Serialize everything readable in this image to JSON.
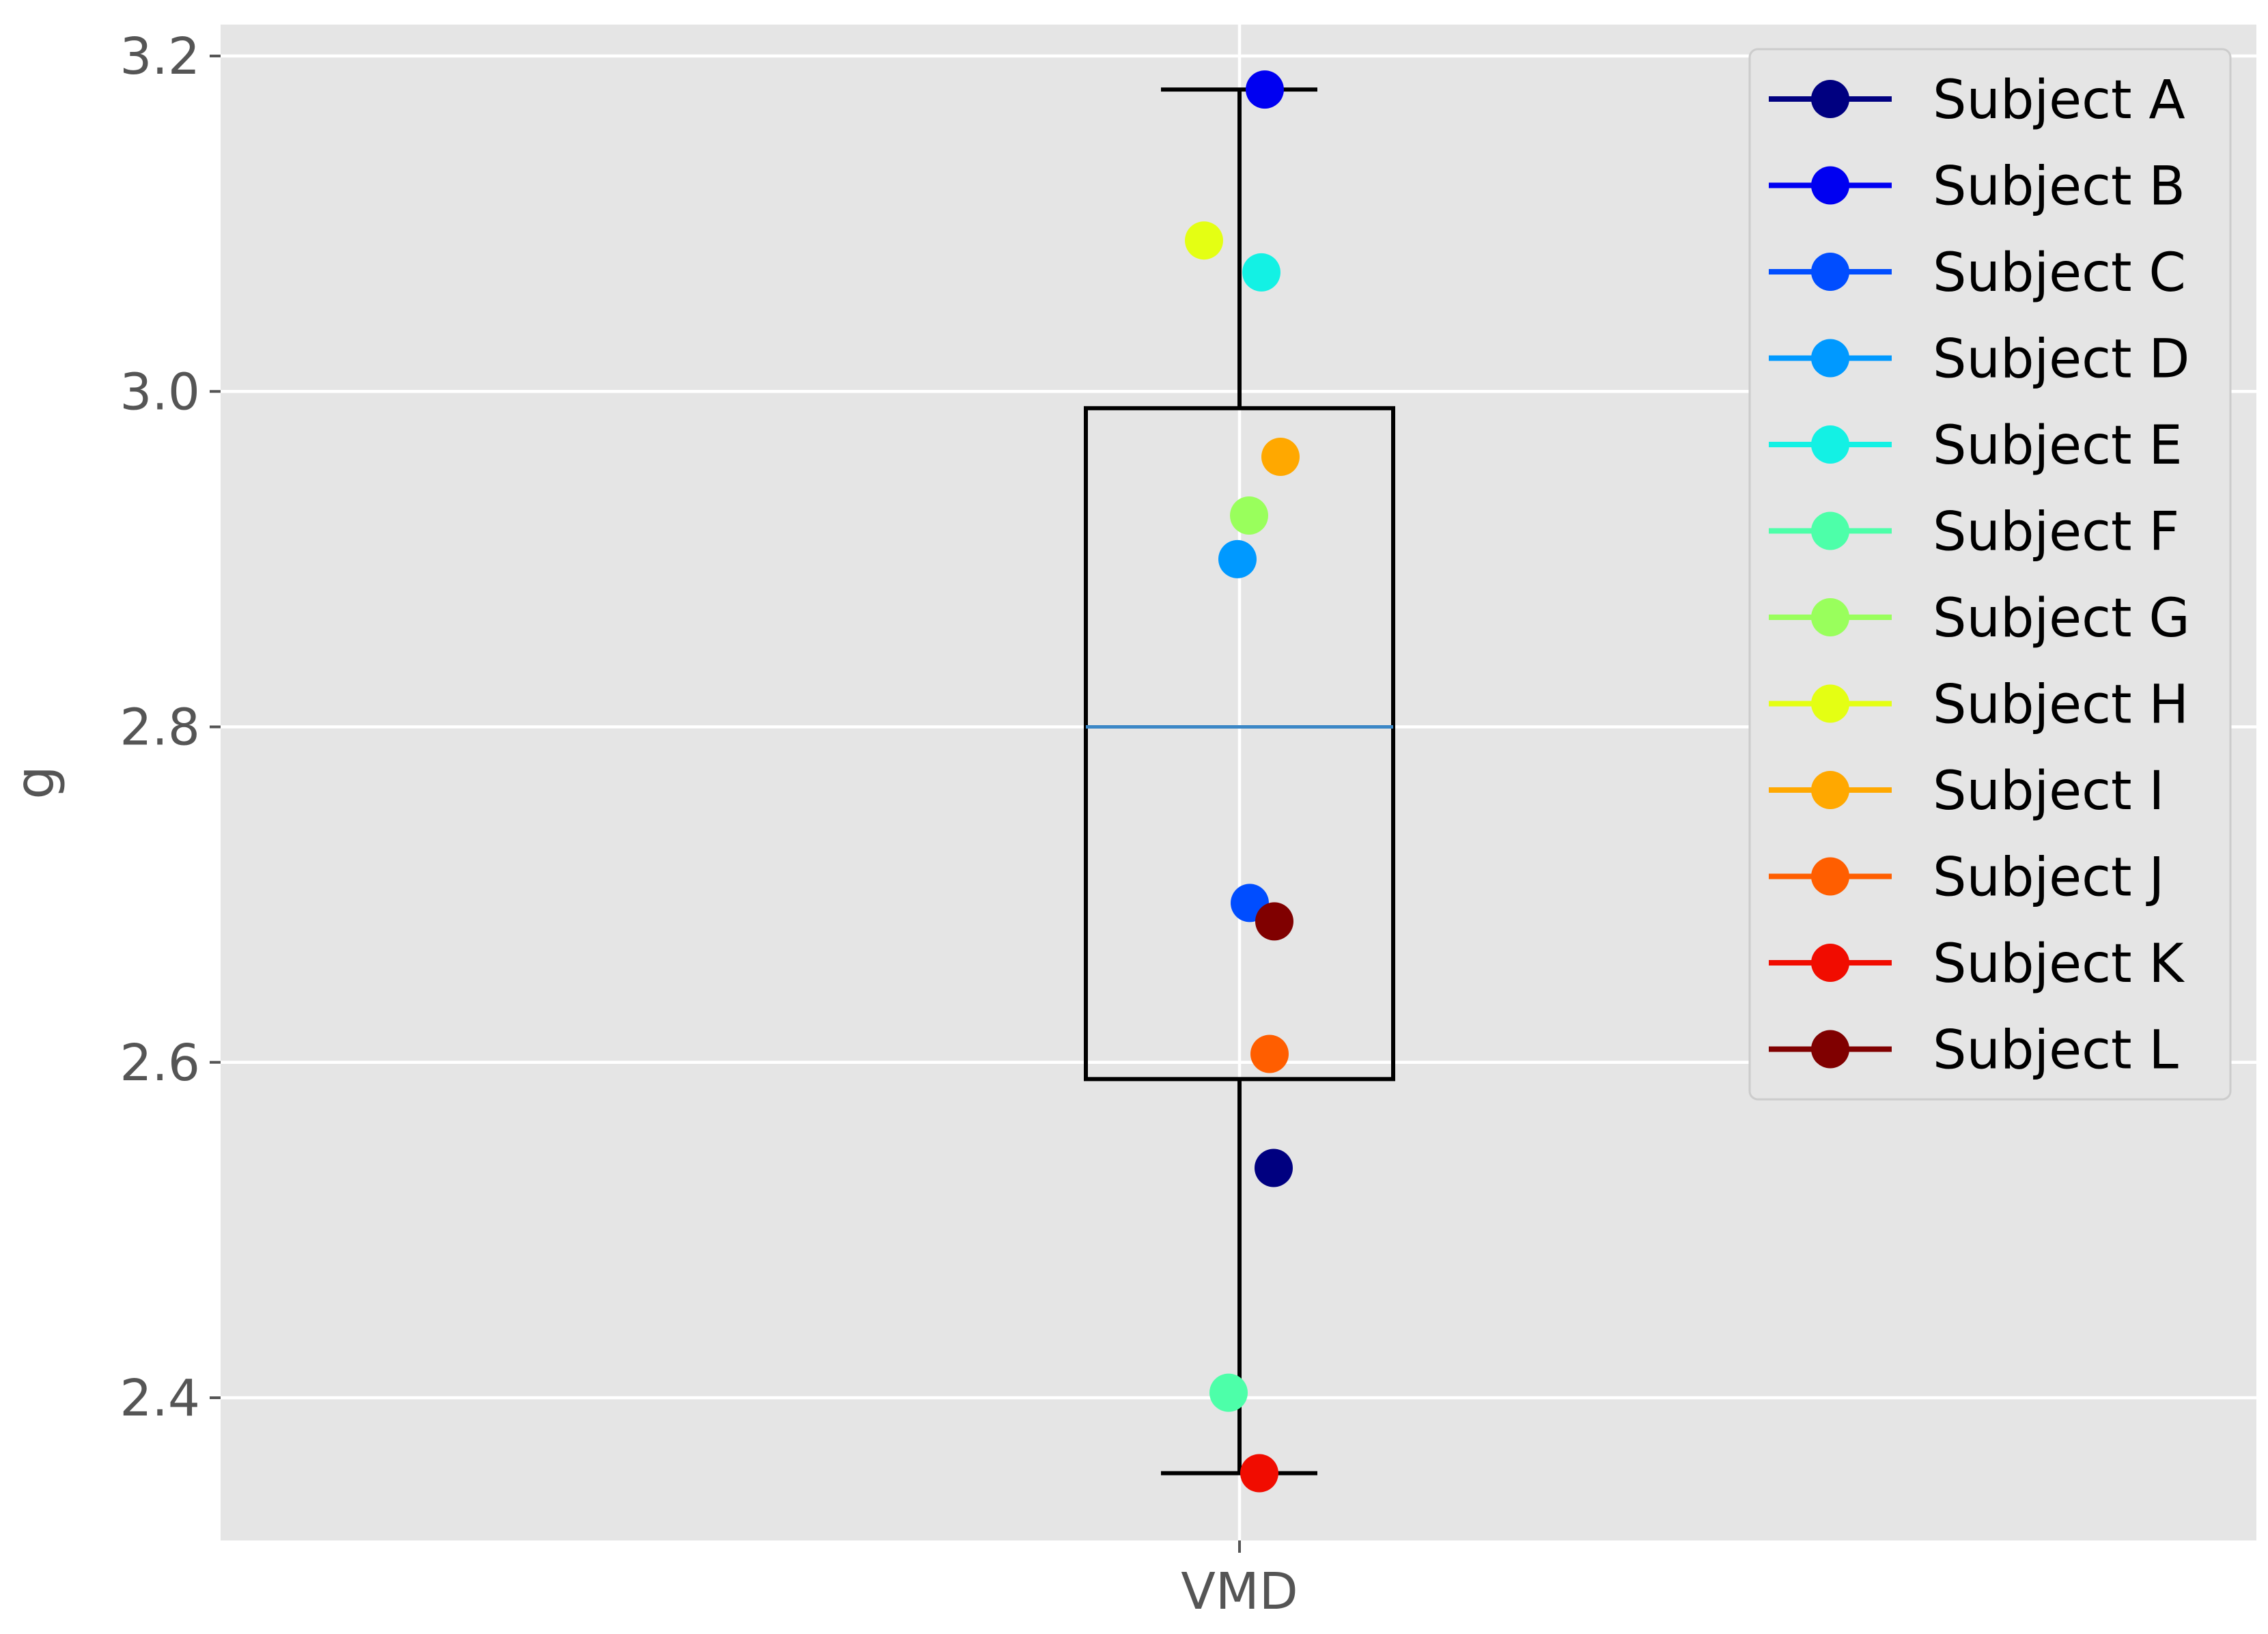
{
  "chart_data": {
    "type": "box",
    "categories": [
      "VMD"
    ],
    "ylabel": "g",
    "xlabel": "",
    "ylim": [
      2.31,
      3.22
    ],
    "yticks": [
      "2.4",
      "2.6",
      "2.8",
      "3.0",
      "3.2"
    ],
    "grid": true,
    "legend_position": "top-right",
    "box": {
      "q1": 2.59,
      "median": 2.8,
      "q3": 2.99,
      "whisker_low": 2.355,
      "whisker_high": 3.18,
      "median_color": "#3b87c6"
    },
    "series": [
      {
        "name": "Subject A",
        "value": 2.537,
        "color": "#000080"
      },
      {
        "name": "Subject B",
        "value": 3.18,
        "color": "#0000f1"
      },
      {
        "name": "Subject C",
        "value": 2.695,
        "color": "#004dff"
      },
      {
        "name": "Subject D",
        "value": 2.9,
        "color": "#0099ff"
      },
      {
        "name": "Subject E",
        "value": 3.071,
        "color": "#13f1e4"
      },
      {
        "name": "Subject F",
        "value": 2.403,
        "color": "#4dffa9"
      },
      {
        "name": "Subject G",
        "value": 2.926,
        "color": "#99ff5c"
      },
      {
        "name": "Subject H",
        "value": 3.09,
        "color": "#e4ff13"
      },
      {
        "name": "Subject I",
        "value": 2.961,
        "color": "#ffa800"
      },
      {
        "name": "Subject J",
        "value": 2.605,
        "color": "#ff5e00"
      },
      {
        "name": "Subject K",
        "value": 2.355,
        "color": "#f10c00"
      },
      {
        "name": "Subject L",
        "value": 2.684,
        "color": "#800000"
      }
    ]
  }
}
